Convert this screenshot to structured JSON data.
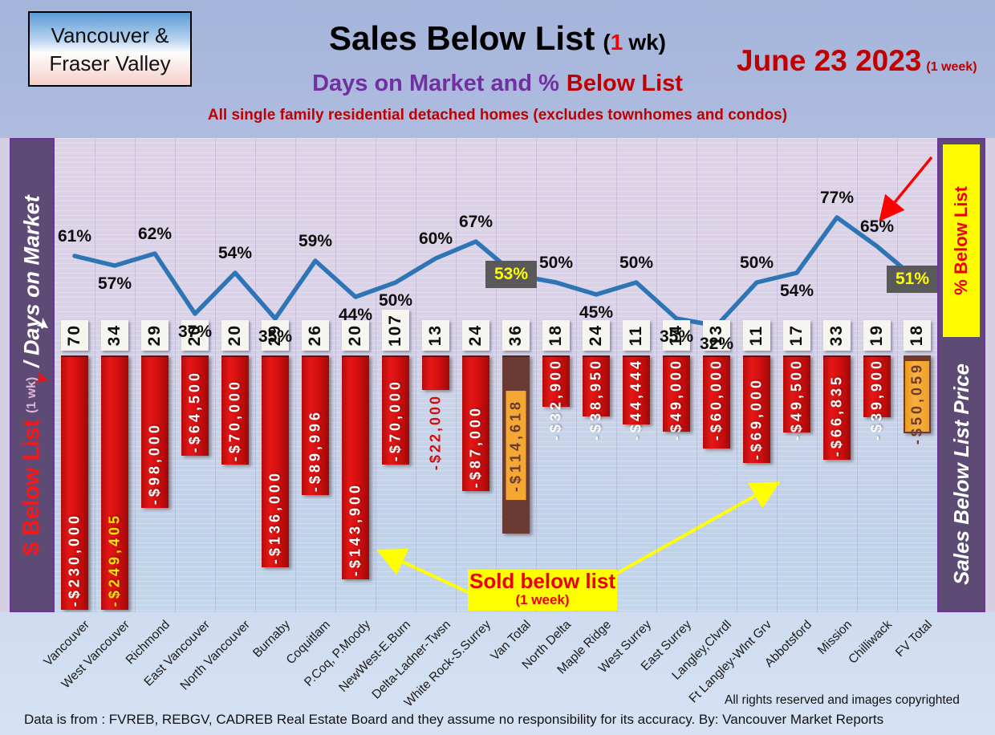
{
  "header": {
    "region_line1": "Vancouver &",
    "region_line2": "Fraser Valley",
    "title_main": "Sales Below List",
    "title_suffix_pre": "(",
    "title_suffix_num": "1",
    "title_suffix_post": "wk)",
    "date_main": "June 23  2023",
    "date_suffix": "(1 week)",
    "subtitle_purple": "Days on Market and %",
    "subtitle_red": "Below List",
    "tagline": "All single family residential detached homes (excludes townhomes and condos)"
  },
  "left_axis": {
    "red": "$ Below List",
    "small": "(1 wk)",
    "white": "/ Days on Market"
  },
  "right_axis": {
    "yellow_box": "% Below List",
    "label": "Sales Below List Price"
  },
  "callout": {
    "line1": "Sold below list",
    "line2": "(1 week)"
  },
  "footer": {
    "rights": "All rights reserved and  images copyrighted",
    "source": "Data is from : FVREB, REBGV, CADREB Real Estate Board and they assume no responsibility for its accuracy. By: Vancouver Market Reports"
  },
  "chart_data": {
    "type": "bar+line",
    "title": "Sales Below List (1 wk) — Days on Market and % Below List",
    "categories": [
      "Vancouver",
      "West Vancouver",
      "Richmond",
      "East Vancouver",
      "North Vancouver",
      "Burnaby",
      "Coquitlam",
      "P.Coq, P.Moody",
      "NewWest-E.Burn",
      "Delta-Ladner-Twsn",
      "White Rock-S.Surrey",
      "Van Total",
      "North Delta",
      "Maple Ridge",
      "West Surrey",
      "East Surrey",
      "Langley,Clvrdl",
      "Ft Langley-Wlnt Grv",
      "Abbotsford",
      "Mission",
      "Chilliwack",
      "FV Total"
    ],
    "series": [
      {
        "name": "Days on Market",
        "values": [
          70,
          34,
          29,
          20,
          20,
          29,
          26,
          20,
          107,
          13,
          24,
          36,
          18,
          24,
          11,
          14,
          13,
          11,
          17,
          33,
          19,
          18
        ]
      },
      {
        "name": "$ Below List (1 wk)",
        "values": [
          -230000,
          -249405,
          -98000,
          -64500,
          -70000,
          -136000,
          -89996,
          -143900,
          -70000,
          -22000,
          -87000,
          -114618,
          -32900,
          -38950,
          -44444,
          -49000,
          -60000,
          -69000,
          -49500,
          -66835,
          -39900,
          -50059
        ],
        "labels": [
          "-$230,000",
          "-$249,405",
          "-$98,000",
          "-$64,500",
          "-$70,000",
          "-$136,000",
          "-$89,996",
          "-$143,900",
          "-$70,000",
          "-$22,000",
          "-$87,000",
          "-$114,618",
          "-$32,900",
          "-$38,950",
          "-$44,444",
          "-$49,000",
          "-$60,000",
          "-$69,000",
          "-$49,500",
          "-$66,835",
          "-$39,900",
          "-$50,059"
        ]
      },
      {
        "name": "% Below List",
        "values": [
          61,
          57,
          62,
          37,
          54,
          35,
          59,
          44,
          50,
          60,
          67,
          53,
          50,
          45,
          50,
          35,
          32,
          50,
          54,
          77,
          65,
          51
        ],
        "labels": [
          "61%",
          "57%",
          "62%",
          "37%",
          "54%",
          "35%",
          "59%",
          "44%",
          "50%",
          "60%",
          "67%",
          "53%",
          "50%",
          "45%",
          "50%",
          "35%",
          "32%",
          "50%",
          "54%",
          "77%",
          "65%",
          "51%"
        ]
      }
    ],
    "pct_label_pos": [
      "above",
      "below",
      "above",
      "below",
      "above",
      "below",
      "above",
      "below",
      "below",
      "above",
      "above",
      "box",
      "above",
      "below",
      "above",
      "below",
      "below",
      "above",
      "below",
      "above",
      "above",
      "box"
    ],
    "bar_style": [
      "normal",
      "yellowtext",
      "normal",
      "normal",
      "normal",
      "normal",
      "normal",
      "normal",
      "normal",
      "outtext",
      "normal",
      "van-total",
      "normal",
      "normal",
      "normal",
      "normal",
      "normal",
      "normal",
      "normal",
      "normal",
      "normal",
      "fv-total"
    ],
    "bar_axis_range_dollars": [
      0,
      -163500
    ],
    "colors": {
      "line": "#2E75B6",
      "bar": "#CE0E10",
      "total_bar": "#6B3B33",
      "total_accent": "#F5A733",
      "pct_box_bg": "#595959",
      "pct_box_text": "#FFFF00",
      "callout_bg": "#FFFF00",
      "callout_text": "#EE0000",
      "sidebar": "#5D4B76",
      "sidebar_border": "#7030A0"
    },
    "legend_position": "none",
    "grid": "fine horizontal lines + faint vertical category separators"
  }
}
